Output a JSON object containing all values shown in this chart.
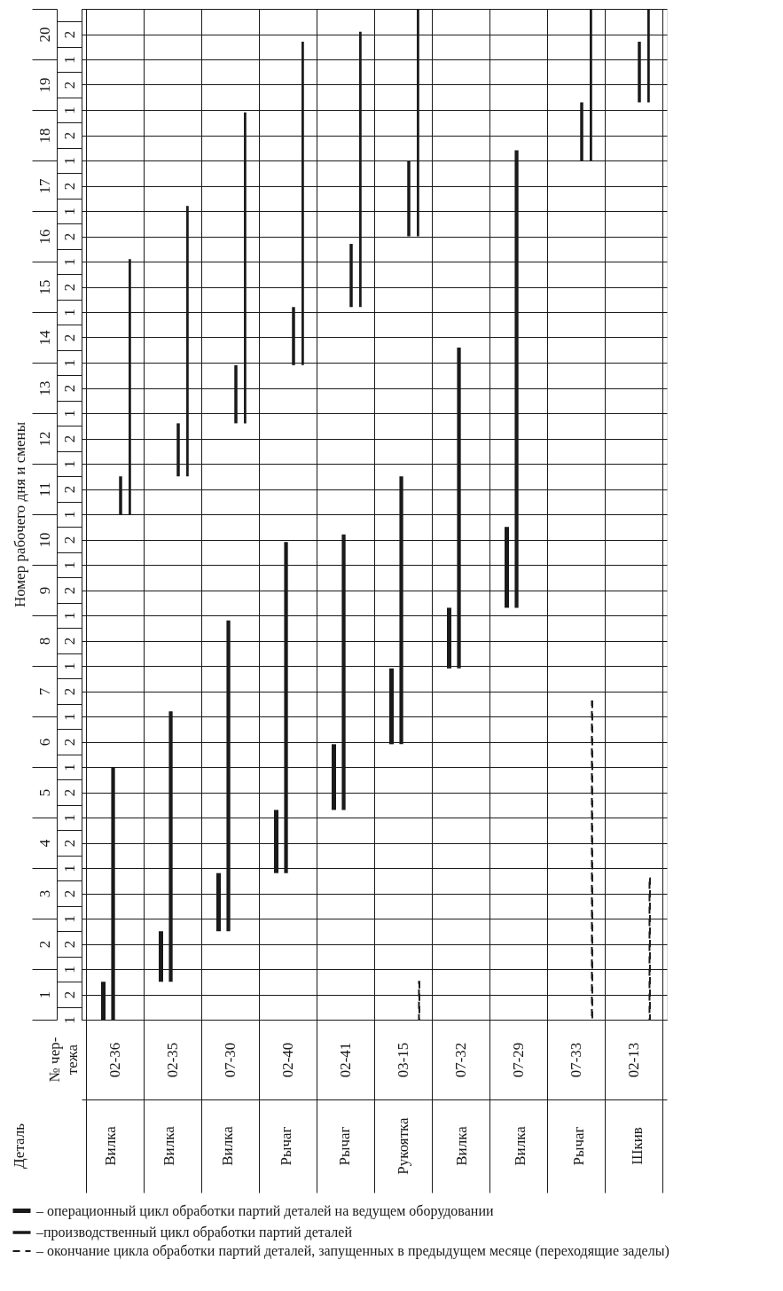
{
  "chart_data": {
    "type": "bar",
    "categories": [
      "02-36",
      "02-35",
      "07-30",
      "02-40",
      "02-41",
      "03-15",
      "07-32",
      "07-29",
      "07-33",
      "02-13"
    ],
    "ylabel": "Номер рабочего дня и смены",
    "ylim": [
      0.5,
      20.5
    ],
    "yticks": [
      1,
      2,
      3,
      4,
      5,
      6,
      7,
      8,
      9,
      10,
      11,
      12,
      13,
      14,
      15,
      16,
      17,
      18,
      19,
      20,
      {
        "value": 0.5,
        "label": null
      },
      {
        "value": 1.5,
        "label": null
      },
      {
        "value": 2.5,
        "label": null
      },
      {
        "value": 3.5,
        "label": null
      },
      {
        "value": 4.5,
        "label": null
      },
      {
        "value": 5.5,
        "label": null
      },
      {
        "value": 6.5,
        "label": null
      },
      {
        "value": 7.5,
        "label": null
      },
      {
        "value": 8.5,
        "label": null
      },
      {
        "value": 9.5,
        "label": null
      },
      {
        "value": 10.5,
        "label": null
      },
      {
        "value": 11.5,
        "label": null
      },
      {
        "value": 12.5,
        "label": null
      },
      {
        "value": 13.5,
        "label": null
      },
      {
        "value": 14.5,
        "label": null
      },
      {
        "value": 15.5,
        "label": null
      },
      {
        "value": 16.5,
        "label": null
      },
      {
        "value": 17.5,
        "label": null
      },
      {
        "value": 18.5,
        "label": null
      },
      {
        "value": 19.5,
        "label": null
      },
      {
        "value": 20.5,
        "label": null
      }
    ],
    "y2_categories": [
      "2",
      "1",
      "2",
      "1",
      "2",
      "1",
      "2",
      "1",
      "2",
      "1",
      "2",
      "1",
      "2",
      "1",
      "2",
      "1",
      "2",
      "1",
      "2",
      "1",
      "2",
      "1",
      "2",
      "1",
      "2",
      "1",
      "2",
      "1",
      "2",
      "1",
      "2",
      "1",
      "2",
      "1",
      "2",
      "1",
      "2",
      "1",
      "2",
      "1"
    ],
    "annotations": [
      "№ чер-\nтежа",
      "Деталь",
      "Вилка",
      "Вилка",
      "Вилка",
      "Рычаг",
      "Рычаг",
      "Рукоятка",
      "Вилка",
      "Вилка",
      "Рычаг",
      "Шкив"
    ],
    "grid": true,
    "legend": "bottom",
    "series": [
      {
        "name": "– операционный цикл обработки партий деталей на ведущем оборудовании",
        "color": "#1a1a1a",
        "line_style": "solid",
        "base": [
          0.5,
          1.25,
          2.25,
          3.4,
          4.65,
          5.95,
          7.45,
          8.65,
          null,
          null
        ],
        "values": [
          0.75,
          1,
          1.15,
          1.25,
          1.3,
          1.5,
          1.2,
          1.6,
          null,
          null
        ]
      },
      {
        "name": "–производственный цикл обработки партий деталей",
        "color": "#1a1a1a",
        "line_style": "solid",
        "base": [
          0.5,
          1.25,
          2.25,
          3.4,
          4.65,
          5.95,
          7.45,
          8.65,
          null,
          null
        ],
        "values": [
          5,
          5.35,
          6.15,
          6.55,
          5.45,
          5.3,
          6.35,
          9.05,
          null,
          null
        ]
      },
      {
        "color": "#1a1a1a",
        "line_style": "solid",
        "base": [
          10.5,
          11.25,
          12.3,
          13.45,
          14.6,
          16,
          null,
          null,
          17.5,
          18.65
        ],
        "values": [
          0.75,
          1.05,
          1.15,
          1.15,
          1.25,
          1.5,
          null,
          null,
          1.15,
          1.2
        ]
      },
      {
        "color": "#1a1a1a",
        "line_style": "solid",
        "base": [
          10.5,
          11.25,
          12.3,
          13.45,
          14.6,
          16,
          null,
          null,
          17.5,
          18.65
        ],
        "values": [
          5.05,
          5.35,
          6.15,
          6.4,
          5.45,
          4.5,
          null,
          null,
          3,
          1.85
        ]
      },
      {
        "name": "– окончание цикла обработки партий деталей, запущенных в предыдущем месяце (переходящие заделы)",
        "color": "#1a1a1a",
        "line_style": "dashed",
        "base": [
          null,
          null,
          null,
          null,
          null,
          0.5,
          null,
          null,
          0.5,
          0.5
        ],
        "values": [
          null,
          null,
          null,
          null,
          null,
          0.75,
          null,
          null,
          6.3,
          2.8
        ]
      }
    ]
  }
}
